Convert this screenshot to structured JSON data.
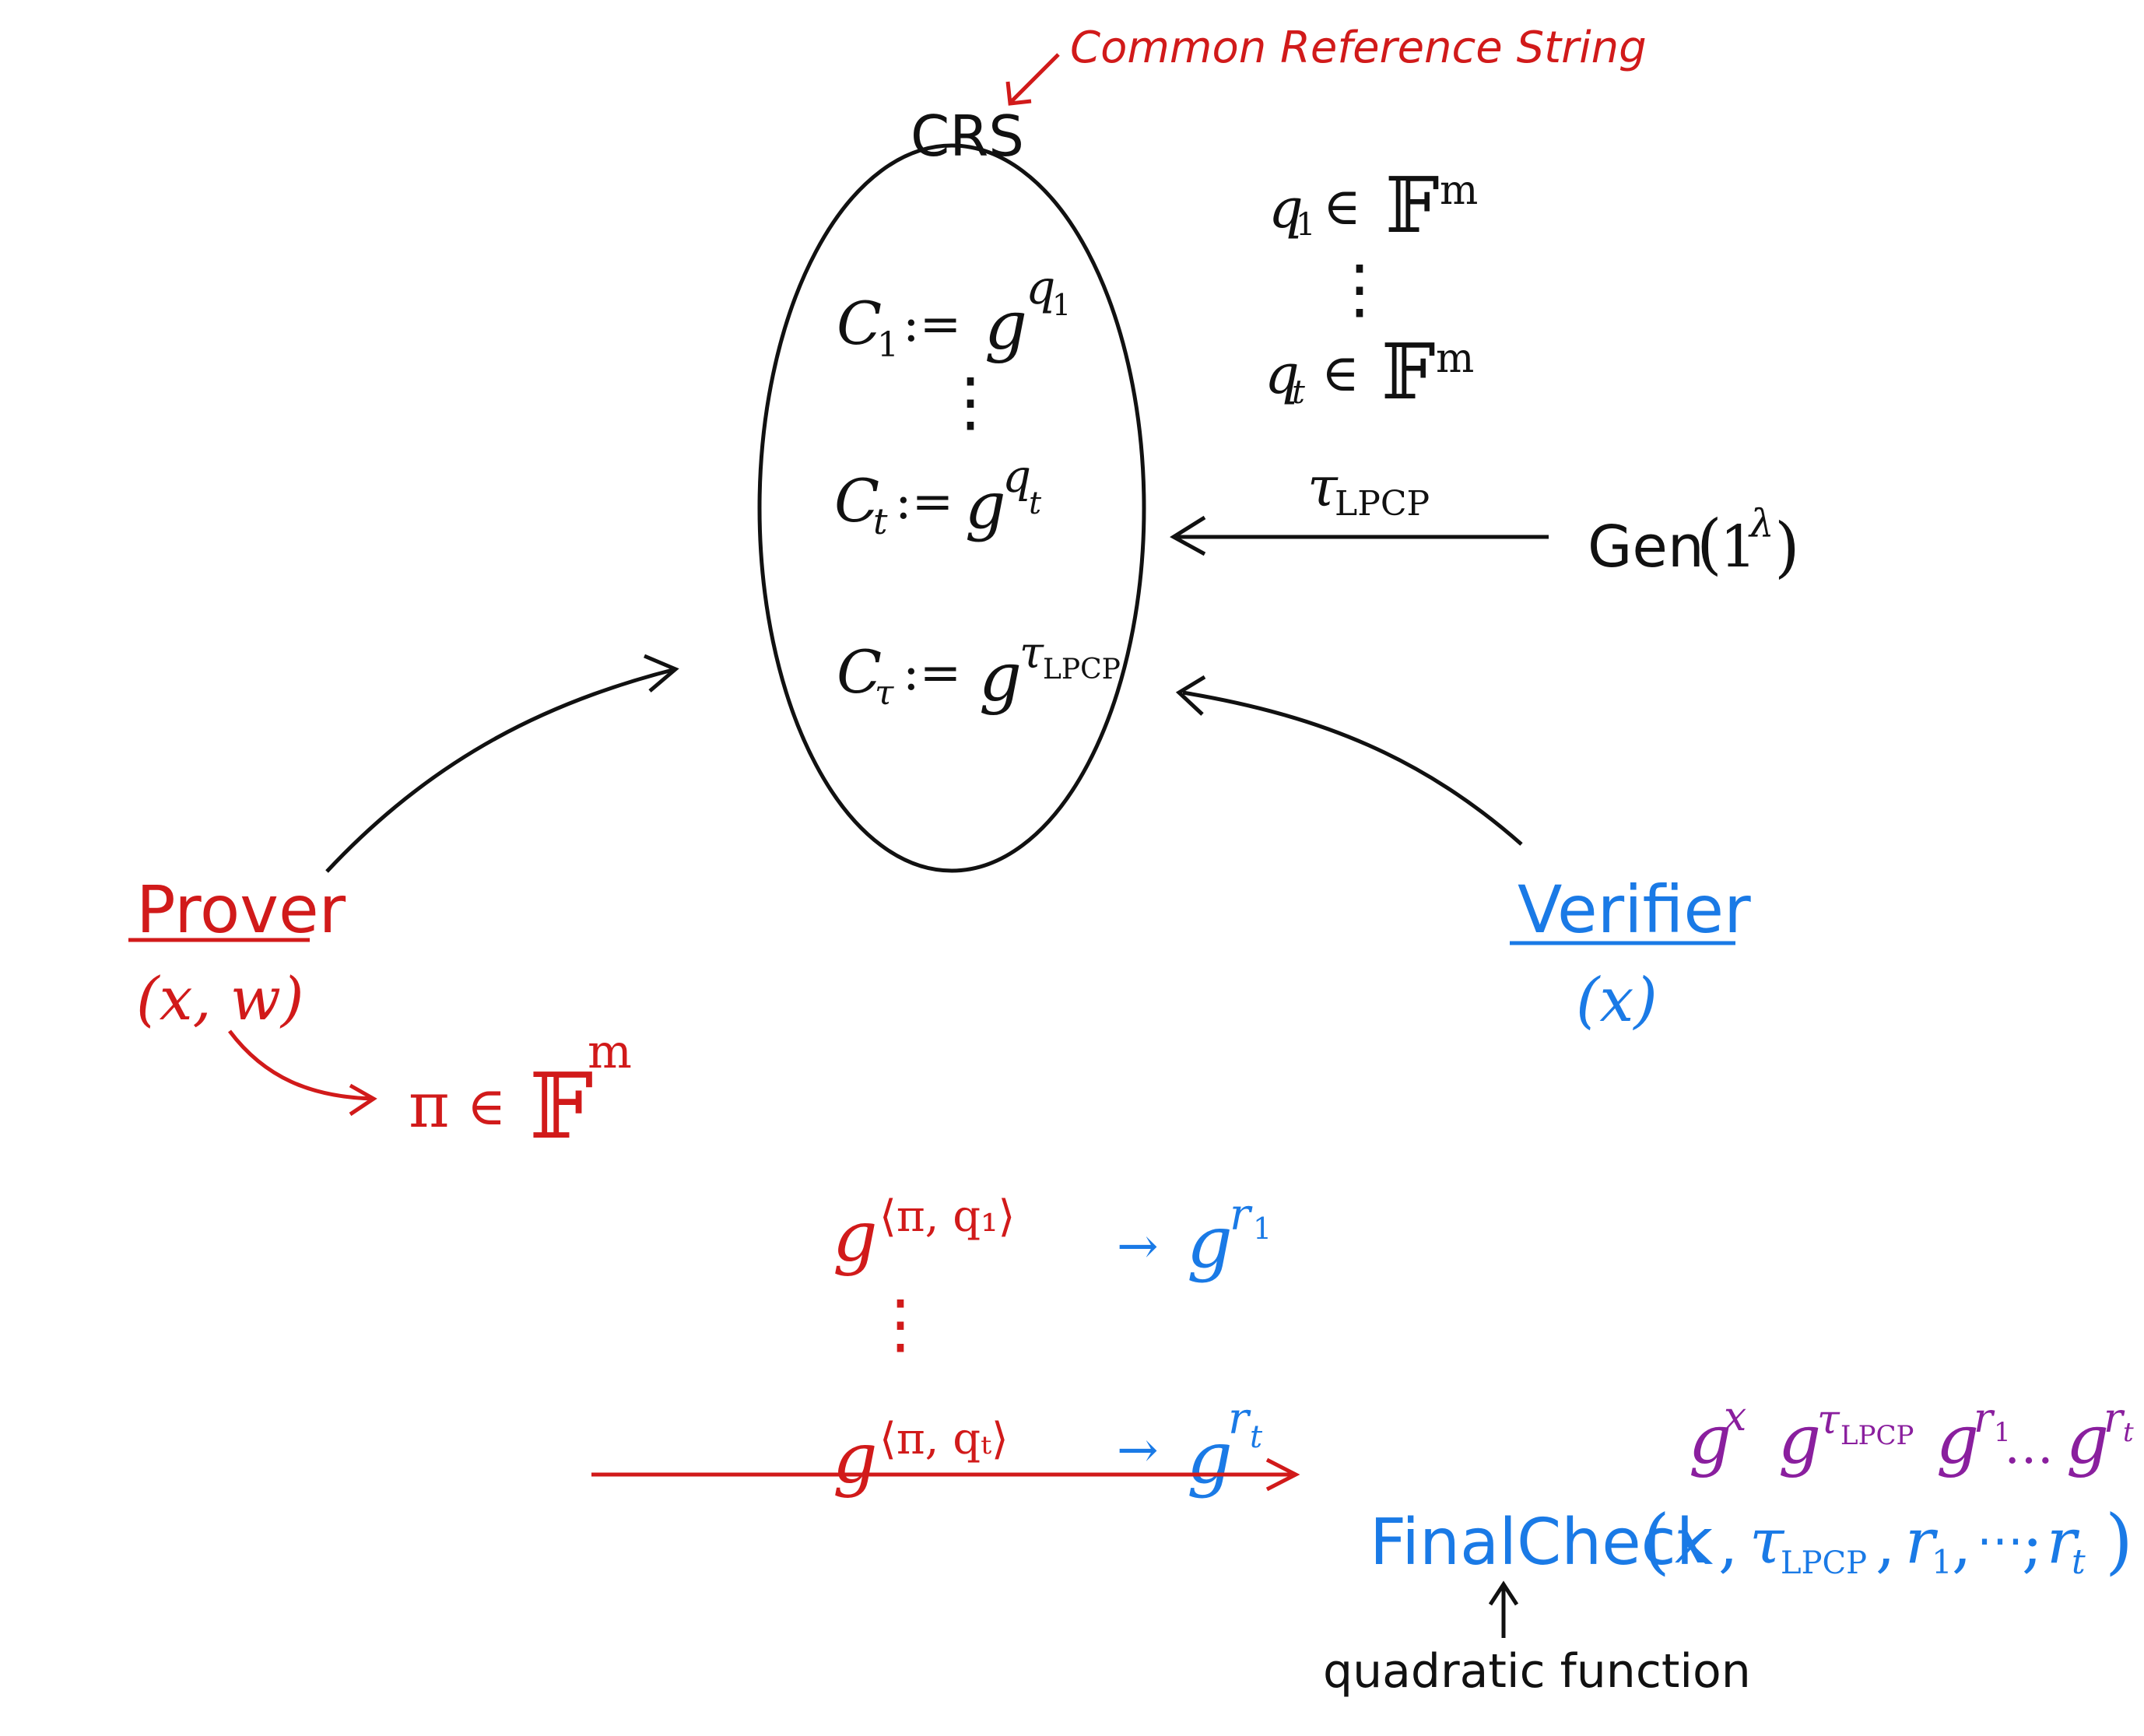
{
  "colors": {
    "black": "#111111",
    "red": "#d11a1a",
    "blue": "#1a7ae6",
    "purple": "#8a1f9e"
  },
  "crs": {
    "annotation": "Common Reference String",
    "label": "CRS",
    "items": {
      "c1": {
        "lhs": "C",
        "lhs_sub": "1",
        "assign": ":=",
        "base": "g",
        "exp": "q",
        "exp_sub": "1"
      },
      "dots": "⋮",
      "ct": {
        "lhs": "C",
        "lhs_sub": "t",
        "assign": ":=",
        "base": "g",
        "exp": "q",
        "exp_sub": "t"
      },
      "ctau": {
        "lhs": "C",
        "lhs_sub": "τ",
        "assign": ":=",
        "base": "g",
        "exp": "τ",
        "exp_sub": "LPCP"
      }
    }
  },
  "queries": {
    "q1": {
      "var": "q",
      "sub": "1",
      "rel": "∈",
      "field": "𝔽",
      "power": "m"
    },
    "dots": "⋮",
    "qt": {
      "var": "q",
      "sub": "t",
      "rel": "∈",
      "field": "𝔽",
      "power": "m"
    },
    "tau": {
      "var": "τ",
      "sub": "LPCP"
    }
  },
  "gen": {
    "name": "Gen",
    "open": "(",
    "one": "1",
    "lambda": "λ",
    "close": ")"
  },
  "prover": {
    "title": "Prover",
    "inputs": "(x, w)",
    "proof": "π",
    "rel": "∈",
    "field": "𝔽",
    "power": "m"
  },
  "verifier": {
    "title": "Verifier",
    "inputs": "(x)"
  },
  "responses": {
    "row1": {
      "base": "g",
      "exp": "⟨π, q₁⟩",
      "arrow": "→",
      "rbase": "g",
      "rexp": "r",
      "rexp_sub": "1"
    },
    "dots": "⋮",
    "rowt": {
      "base": "g",
      "exp": "⟨π, qₜ⟩",
      "arrow": "→",
      "rbase": "g",
      "rexp": "r",
      "rexp_sub": "t"
    }
  },
  "purple_terms": {
    "gx": {
      "base": "g",
      "exp": "x"
    },
    "gtau": {
      "base": "g",
      "exp": "τ",
      "exp_sub": "LPCP"
    },
    "gr1": {
      "base": "g",
      "exp": "r",
      "exp_sub": "1"
    },
    "ellipsis": "…",
    "grt": {
      "base": "g",
      "exp": "r",
      "exp_sub": "t"
    }
  },
  "final_check": {
    "name": "FinalCheck",
    "open": "(",
    "x": "x",
    "comma1": ",",
    "tau": "τ",
    "tau_sub": "LPCP",
    "comma2": ",",
    "r1": "r",
    "r1_sub": "1",
    "comma3": ",",
    "ellipsis": "⋯",
    "semicolon": ";",
    "rt": "r",
    "rt_sub": "t",
    "close": ")",
    "note": "quadratic function"
  }
}
